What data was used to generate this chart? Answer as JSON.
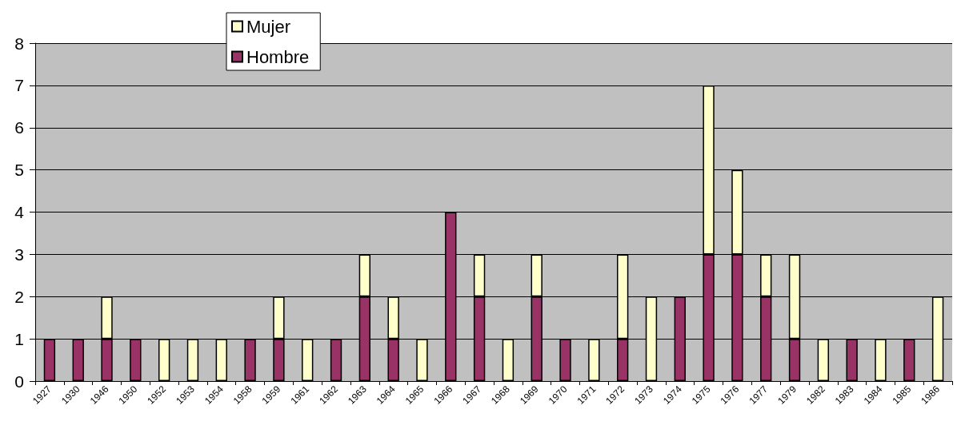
{
  "chart_data": {
    "type": "bar",
    "stacked": true,
    "categories": [
      "1927",
      "1930",
      "1946",
      "1950",
      "1952",
      "1953",
      "1954",
      "1958",
      "1959",
      "1961",
      "1962",
      "1963",
      "1964",
      "1965",
      "1966",
      "1967",
      "1968",
      "1969",
      "1970",
      "1971",
      "1972",
      "1973",
      "1974",
      "1975",
      "1976",
      "1977",
      "1979",
      "1982",
      "1983",
      "1984",
      "1985",
      "1986"
    ],
    "series": [
      {
        "name": "Hombre",
        "color": "#993366",
        "values": [
          1,
          1,
          1,
          1,
          null,
          null,
          null,
          1,
          1,
          null,
          1,
          2,
          1,
          null,
          4,
          2,
          null,
          2,
          1,
          null,
          1,
          null,
          2,
          3,
          3,
          2,
          1,
          null,
          1,
          null,
          1,
          null
        ]
      },
      {
        "name": "Mujer",
        "color": "#ffffcc",
        "values": [
          null,
          null,
          1,
          null,
          1,
          1,
          1,
          null,
          1,
          1,
          null,
          1,
          1,
          1,
          null,
          1,
          1,
          1,
          null,
          1,
          2,
          2,
          null,
          4,
          2,
          1,
          2,
          1,
          null,
          1,
          null,
          2
        ]
      }
    ],
    "ylim": [
      0,
      8
    ],
    "yticks": [
      0,
      1,
      2,
      3,
      4,
      5,
      6,
      7,
      8
    ],
    "grid": "y",
    "legend": "top left"
  }
}
